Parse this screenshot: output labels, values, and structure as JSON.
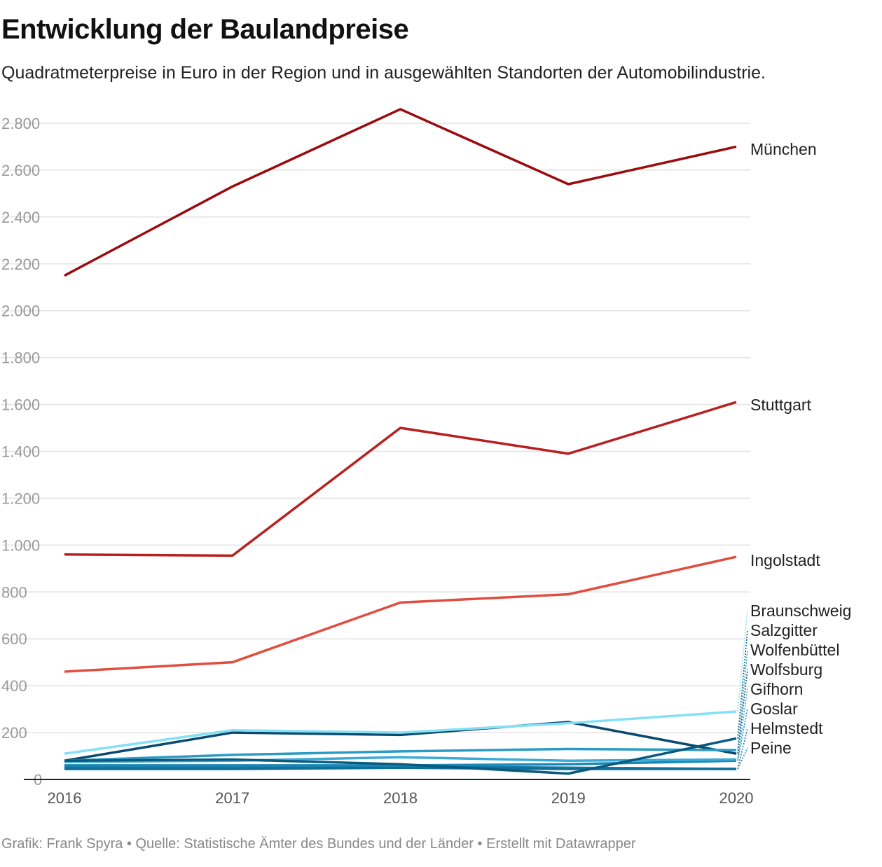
{
  "chart_data": {
    "type": "line",
    "title": "Entwicklung der Baulandpreise",
    "subtitle": "Quadratmeterpreise in Euro in der Region und in ausgewählten Standorten der Automobilindustrie.",
    "footer": "Grafik: Frank Spyra • Quelle: Statistische Ämter des Bundes und der Länder • Erstellt mit Datawrapper",
    "x": [
      "2016",
      "2017",
      "2018",
      "2019",
      "2020"
    ],
    "ylim": [
      0,
      2800
    ],
    "yticks": [
      0,
      200,
      400,
      600,
      800,
      1000,
      1200,
      1400,
      1600,
      1800,
      2000,
      2200,
      2400,
      2600,
      2800
    ],
    "ytick_labels": [
      "0",
      "200",
      "400",
      "600",
      "800",
      "1.000",
      "1.200",
      "1.400",
      "1.600",
      "1.800",
      "2.000",
      "2.200",
      "2.400",
      "2.600",
      "2.800"
    ],
    "grid": true,
    "legend": "direct labels at right",
    "series": [
      {
        "name": "München",
        "color": "#9b0a0e",
        "values": [
          2150,
          2530,
          2860,
          2540,
          2700
        ]
      },
      {
        "name": "Stuttgart",
        "color": "#b8201f",
        "values": [
          960,
          955,
          1500,
          1390,
          1610
        ]
      },
      {
        "name": "Ingolstadt",
        "color": "#e04e3e",
        "values": [
          460,
          500,
          755,
          790,
          950
        ]
      },
      {
        "name": "Braunschweig",
        "color": "#84e1f5",
        "values": [
          110,
          210,
          200,
          240,
          290
        ]
      },
      {
        "name": "Salzgitter",
        "color": "#0a5a80",
        "values": [
          80,
          85,
          65,
          25,
          175
        ]
      },
      {
        "name": "Wolfenbüttel",
        "color": "#2a9bc4",
        "values": [
          80,
          105,
          120,
          130,
          125
        ]
      },
      {
        "name": "Wolfsburg",
        "color": "#0b4a6e",
        "values": [
          80,
          200,
          190,
          245,
          110
        ]
      },
      {
        "name": "Gifhorn",
        "color": "#3aaad6",
        "values": [
          75,
          80,
          95,
          80,
          85
        ]
      },
      {
        "name": "Goslar",
        "color": "#1b86b4",
        "values": [
          60,
          60,
          60,
          65,
          80
        ]
      },
      {
        "name": "Helmstedt",
        "color": "#0f6f99",
        "values": [
          45,
          45,
          50,
          45,
          45
        ]
      },
      {
        "name": "Peine",
        "color": "#1378a6",
        "values": [
          50,
          55,
          55,
          50,
          45
        ]
      }
    ]
  }
}
